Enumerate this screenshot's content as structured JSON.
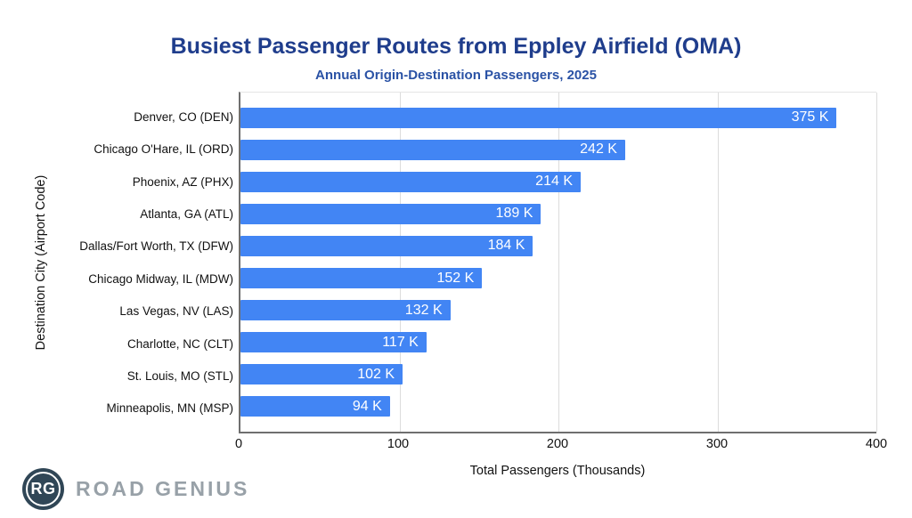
{
  "title": "Busiest Passenger Routes from Eppley Airfield (OMA)",
  "subtitle": "Annual Origin-Destination Passengers, 2025",
  "colors": {
    "bar": "#4285F4",
    "title": "#1F3D8C",
    "subtitle": "#2A52A5",
    "logo_navy": "#304656",
    "logo_gray": "#98A1A8",
    "gridline": "#DCDCDC",
    "bar_value_text": "#FFFFFF"
  },
  "chart_data": {
    "type": "bar",
    "orientation": "horizontal",
    "title": "Busiest Passenger Routes from Eppley Airfield (OMA)",
    "subtitle": "Annual Origin-Destination Passengers, 2025",
    "categories": [
      "Denver, CO (DEN)",
      "Chicago O'Hare, IL (ORD)",
      "Phoenix, AZ (PHX)",
      "Atlanta, GA (ATL)",
      "Dallas/Fort Worth, TX (DFW)",
      "Chicago Midway, IL (MDW)",
      "Las Vegas, NV (LAS)",
      "Charlotte, NC (CLT)",
      "St. Louis, MO (STL)",
      "Minneapolis, MN (MSP)"
    ],
    "values": [
      375,
      242,
      214,
      189,
      184,
      152,
      132,
      117,
      102,
      94
    ],
    "value_labels": [
      "375 K",
      "242 K",
      "214 K",
      "189 K",
      "184 K",
      "152 K",
      "132 K",
      "117 K",
      "102 K",
      "94 K"
    ],
    "xlabel": "Total Passengers (Thousands)",
    "ylabel": "Destination City (Airport Code)",
    "xlim": [
      0,
      400
    ],
    "xticks": [
      0,
      100,
      200,
      300,
      400
    ],
    "grid": "vertical",
    "legend_position": "none"
  },
  "logo": {
    "badge": "RG",
    "text": "ROAD GENIUS"
  }
}
